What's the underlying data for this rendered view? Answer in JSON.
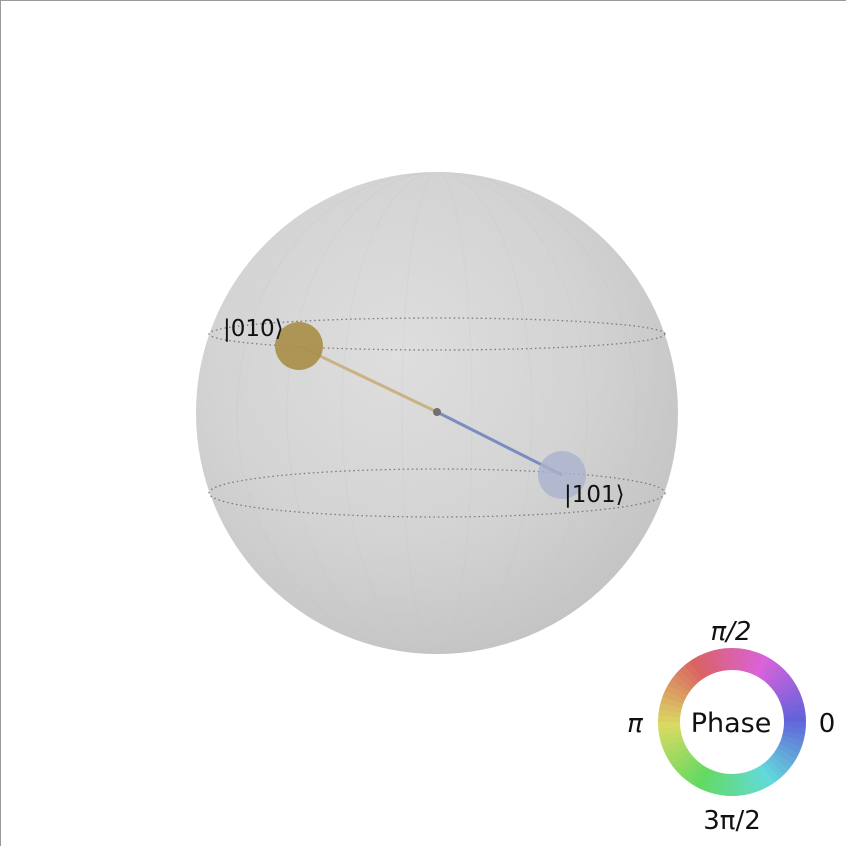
{
  "diagram": {
    "type": "qsphere",
    "states": [
      {
        "label": "|010⟩",
        "color": "#a98f4a",
        "line_color": "#c9b384"
      },
      {
        "label": "|101⟩",
        "color": "#aab2cc",
        "line_color": "#7b8cc0"
      }
    ],
    "sphere_color": "#d2d2d2",
    "latitude_line_color": "#7a7a7a"
  },
  "phase_legend": {
    "title": "Phase",
    "ticks": {
      "top": "π/2",
      "left": "π",
      "right": "0",
      "bottom": "3π/2"
    }
  }
}
